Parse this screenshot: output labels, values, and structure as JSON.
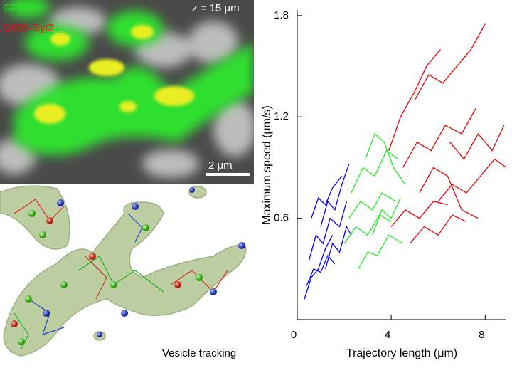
{
  "panel_a": {
    "labels": [
      "GFP",
      "Q655-Syt2"
    ],
    "z_label": "z = 15 μm",
    "scale_label": "2 μm"
  },
  "panel_b": {
    "label": "Vesicle tracking"
  },
  "chart_data": {
    "type": "line",
    "y_label": "Maximum speed (μm/s)",
    "x_label": "Trajectory length (μm)",
    "xlim": [
      0,
      8.9
    ],
    "ylim": [
      0,
      1.85
    ],
    "xticks": [
      0,
      4,
      8
    ],
    "yticks": [
      0.6,
      1.2,
      1.8
    ],
    "series": [
      {
        "color": "#0000ff",
        "trajectories": [
          {
            "x": [
              0.3,
              0.6,
              0.9,
              1.2,
              1.5
            ],
            "y": [
              0.12,
              0.25,
              0.3,
              0.42,
              0.5
            ]
          },
          {
            "x": [
              0.5,
              0.8,
              1.1,
              1.4,
              1.8,
              2.1
            ],
            "y": [
              0.35,
              0.5,
              0.45,
              0.6,
              0.55,
              0.7
            ]
          },
          {
            "x": [
              1.0,
              1.3,
              1.6,
              1.9,
              2.2
            ],
            "y": [
              0.55,
              0.7,
              0.65,
              0.8,
              0.92
            ]
          },
          {
            "x": [
              0.4,
              0.7,
              1.0,
              1.3,
              1.6
            ],
            "y": [
              0.2,
              0.3,
              0.28,
              0.38,
              0.33
            ]
          },
          {
            "x": [
              1.2,
              1.5,
              1.8,
              2.1,
              2.3
            ],
            "y": [
              0.3,
              0.45,
              0.4,
              0.55,
              0.5
            ]
          },
          {
            "x": [
              0.6,
              0.9,
              1.2,
              1.5,
              1.9
            ],
            "y": [
              0.6,
              0.72,
              0.68,
              0.78,
              0.85
            ]
          }
        ]
      },
      {
        "color": "#22ee22",
        "trajectories": [
          {
            "x": [
              2.0,
              2.5,
              3.0,
              3.5,
              4.0
            ],
            "y": [
              0.45,
              0.55,
              0.5,
              0.62,
              0.58
            ]
          },
          {
            "x": [
              2.3,
              2.8,
              3.3,
              3.8,
              4.3
            ],
            "y": [
              0.75,
              0.9,
              0.85,
              1.0,
              0.95
            ]
          },
          {
            "x": [
              2.6,
              3.0,
              3.4,
              3.9,
              4.5
            ],
            "y": [
              0.3,
              0.4,
              0.38,
              0.5,
              0.45
            ]
          },
          {
            "x": [
              2.9,
              3.3,
              3.7,
              4.1,
              4.6
            ],
            "y": [
              0.95,
              1.1,
              1.05,
              0.9,
              0.8
            ]
          },
          {
            "x": [
              2.2,
              2.7,
              3.2,
              3.6,
              4.2
            ],
            "y": [
              0.6,
              0.7,
              0.65,
              0.75,
              0.7
            ]
          },
          {
            "x": [
              3.2,
              3.6,
              4.0,
              4.4
            ],
            "y": [
              0.5,
              0.65,
              0.6,
              0.72
            ]
          }
        ]
      },
      {
        "color": "#ee0000",
        "trajectories": [
          {
            "x": [
              4.0,
              4.6,
              5.2,
              5.8,
              6.4
            ],
            "y": [
              0.55,
              0.65,
              0.6,
              0.7,
              0.68
            ]
          },
          {
            "x": [
              4.5,
              5.1,
              5.7,
              6.3,
              7.0,
              7.6
            ],
            "y": [
              0.9,
              1.05,
              1.0,
              1.15,
              1.1,
              1.25
            ]
          },
          {
            "x": [
              5.0,
              5.6,
              6.2,
              6.8,
              7.4,
              8.0
            ],
            "y": [
              1.3,
              1.45,
              1.4,
              1.5,
              1.6,
              1.75
            ]
          },
          {
            "x": [
              4.8,
              5.4,
              6.0,
              6.6,
              7.2
            ],
            "y": [
              0.45,
              0.55,
              0.5,
              0.62,
              0.58
            ]
          },
          {
            "x": [
              6.0,
              6.6,
              7.2,
              7.8,
              8.4,
              8.9
            ],
            "y": [
              0.7,
              0.8,
              0.75,
              0.85,
              0.95,
              0.9
            ]
          },
          {
            "x": [
              3.9,
              4.4,
              5.0,
              5.5,
              6.1
            ],
            "y": [
              1.0,
              1.2,
              1.35,
              1.5,
              1.6
            ]
          },
          {
            "x": [
              6.5,
              7.1,
              7.7,
              8.3,
              8.8
            ],
            "y": [
              1.05,
              0.95,
              1.1,
              1.0,
              1.15
            ]
          },
          {
            "x": [
              5.2,
              5.8,
              6.4,
              7.0,
              7.7
            ],
            "y": [
              0.75,
              0.9,
              0.85,
              0.65,
              0.6
            ]
          }
        ]
      }
    ]
  }
}
